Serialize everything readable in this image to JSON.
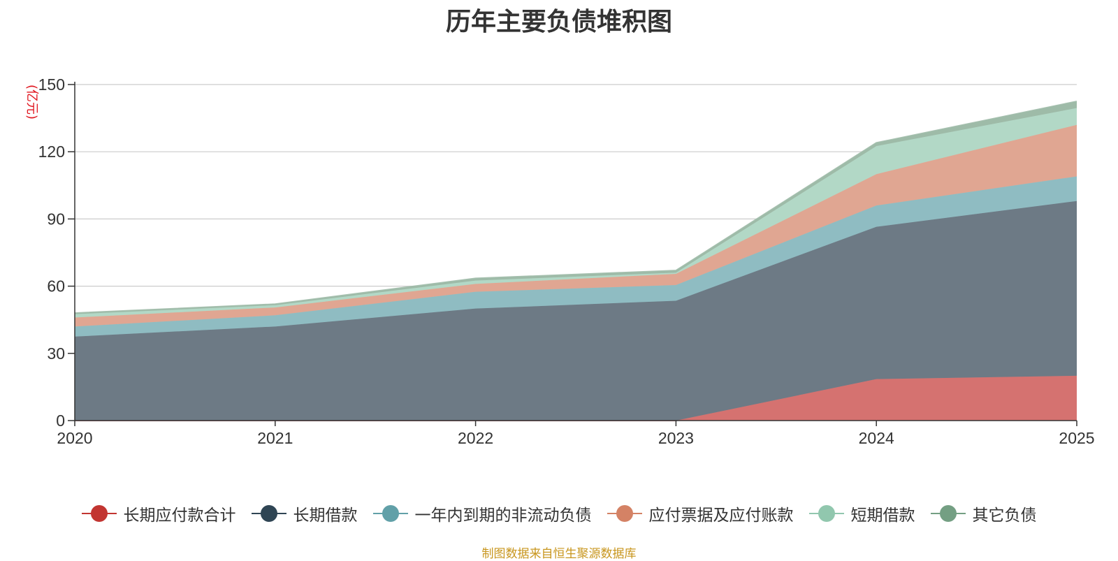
{
  "chart_data": {
    "type": "area",
    "stacked": true,
    "title": "历年主要负债堆积图",
    "ylabel": "(亿元)",
    "xlabel": "",
    "categories": [
      "2020",
      "2021",
      "2022",
      "2023",
      "2024",
      "2025"
    ],
    "ylim": [
      0,
      150
    ],
    "yticks": [
      0,
      30,
      60,
      90,
      120,
      150
    ],
    "grid": true,
    "legend_position": "bottom",
    "series": [
      {
        "name": "长期应付款合计",
        "color": "#c23531",
        "fill": "#d57270",
        "values": [
          0,
          0,
          0,
          0,
          18.5,
          20
        ]
      },
      {
        "name": "长期借款",
        "color": "#2f4554",
        "fill": "#6d7a85",
        "values": [
          37.5,
          42,
          50,
          53.5,
          68,
          78
        ]
      },
      {
        "name": "一年内到期的非流动负债",
        "color": "#61a0a8",
        "fill": "#8fbcc2",
        "values": [
          4.5,
          5,
          7.5,
          7,
          9.5,
          11
        ]
      },
      {
        "name": "应付票据及应付账款",
        "color": "#d48265",
        "fill": "#e0a692",
        "values": [
          4,
          3.5,
          3.5,
          5,
          14,
          23
        ]
      },
      {
        "name": "短期借款",
        "color": "#91c7ae",
        "fill": "#b2d8c6",
        "values": [
          1.5,
          1,
          1.5,
          0.5,
          12.5,
          7.5
        ]
      },
      {
        "name": "其它负债",
        "color": "#749f83",
        "fill": "#9ebba8",
        "values": [
          0.5,
          0.5,
          1,
          1,
          1.5,
          3
        ]
      }
    ]
  },
  "source": "制图数据来自恒生聚源数据库"
}
